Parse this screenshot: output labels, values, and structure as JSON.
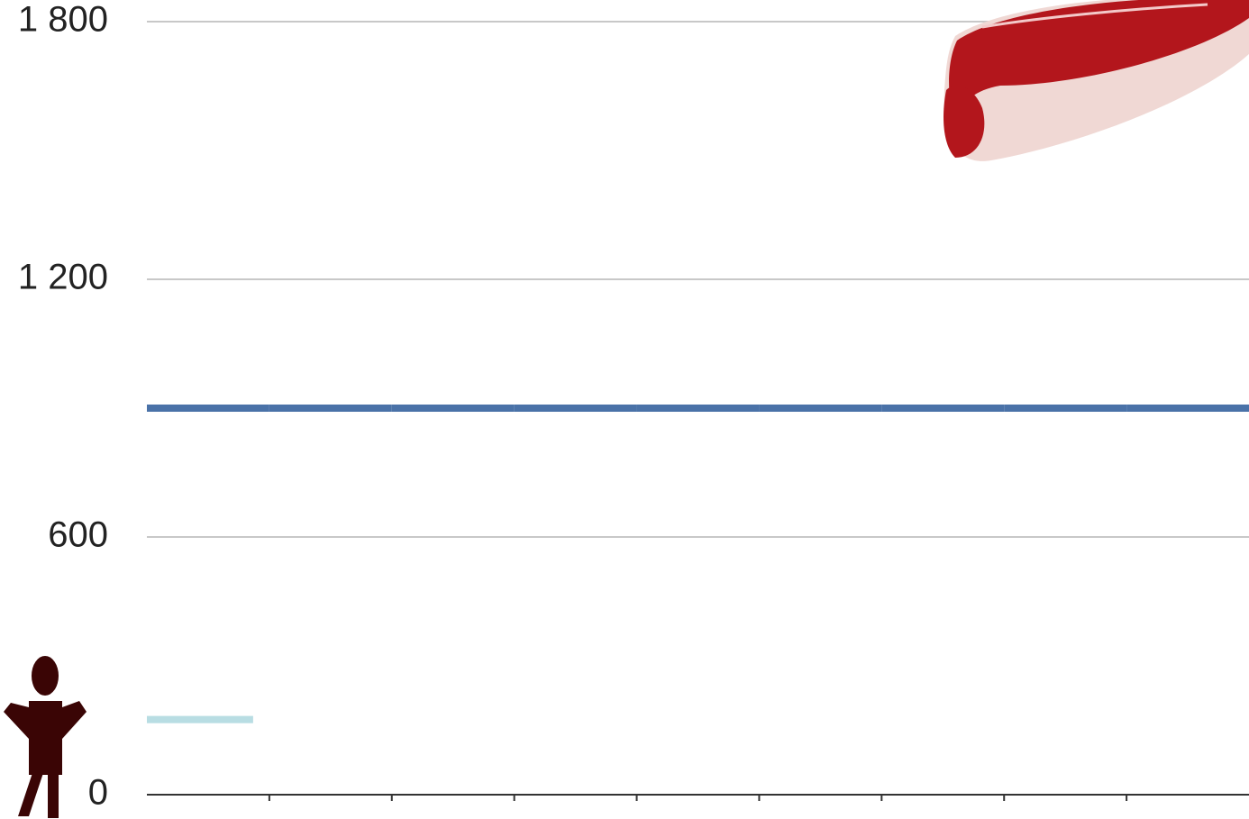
{
  "chart_data": {
    "type": "step",
    "categories": [
      null,
      null,
      null,
      null,
      null,
      null,
      null,
      null,
      null
    ],
    "series": [
      {
        "color": "#4a72a8",
        "values": [
          900,
          900,
          900,
          900,
          900,
          900,
          900,
          900,
          900
        ]
      },
      {
        "color": "#b8dde3",
        "values": [
          175,
          null,
          null,
          null,
          null,
          null,
          null,
          null,
          null
        ]
      }
    ],
    "ylim": [
      0,
      1800
    ],
    "yticks": [
      0,
      600,
      {
        "value": 1200,
        "label": "1 200"
      },
      {
        "value": 1800,
        "label": "1 800"
      }
    ],
    "grid": true
  }
}
